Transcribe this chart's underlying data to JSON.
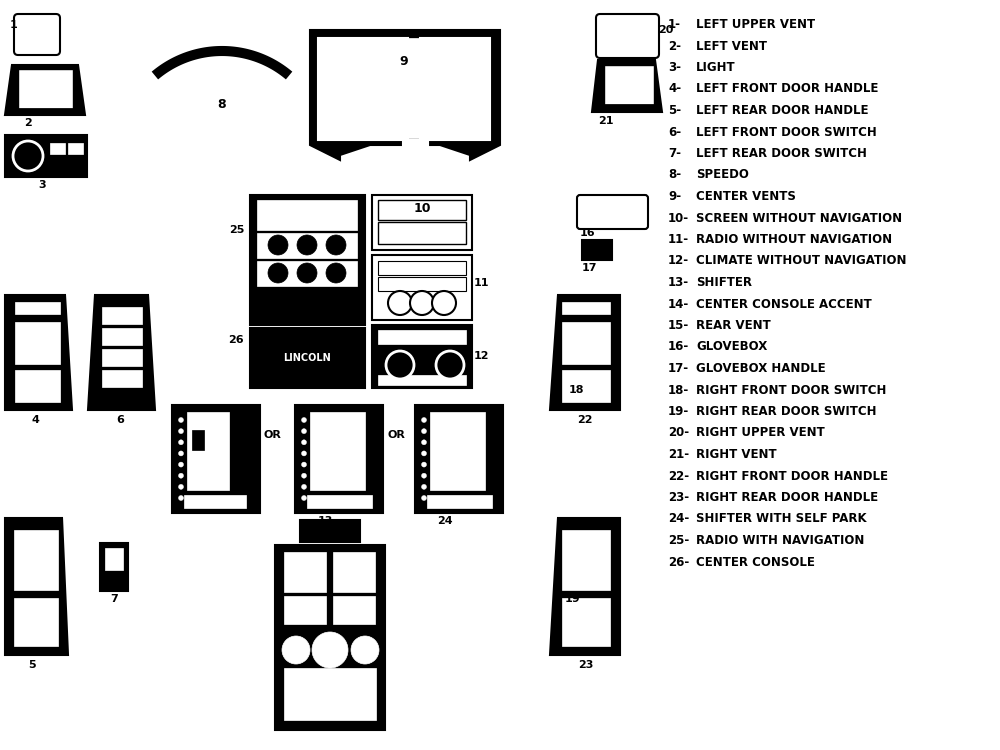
{
  "background": "#ffffff",
  "legend": [
    [
      "1-",
      "LEFT UPPER VENT"
    ],
    [
      "2-",
      "LEFT VENT"
    ],
    [
      "3-",
      "LIGHT"
    ],
    [
      "4-",
      "LEFT FRONT DOOR HANDLE"
    ],
    [
      "5-",
      "LEFT REAR DOOR HANDLE"
    ],
    [
      "6-",
      "LEFT FRONT DOOR SWITCH"
    ],
    [
      "7-",
      "LEFT REAR DOOR SWITCH"
    ],
    [
      "8-",
      "SPEEDO"
    ],
    [
      "9-",
      "CENTER VENTS"
    ],
    [
      "10-",
      "SCREEN WITHOUT NAVIGATION"
    ],
    [
      "11-",
      "RADIO WITHOUT NAVIGATION"
    ],
    [
      "12-",
      "CLIMATE WITHOUT NAVIGATION"
    ],
    [
      "13-",
      "SHIFTER"
    ],
    [
      "14-",
      "CENTER CONSOLE ACCENT"
    ],
    [
      "15-",
      "REAR VENT"
    ],
    [
      "16-",
      "GLOVEBOX"
    ],
    [
      "17-",
      "GLOVEBOX HANDLE"
    ],
    [
      "18-",
      "RIGHT FRONT DOOR SWITCH"
    ],
    [
      "19-",
      "RIGHT REAR DOOR SWITCH"
    ],
    [
      "20-",
      "RIGHT UPPER VENT"
    ],
    [
      "21-",
      "RIGHT VENT"
    ],
    [
      "22-",
      "RIGHT FRONT DOOR HANDLE"
    ],
    [
      "23-",
      "RIGHT REAR DOOR HANDLE"
    ],
    [
      "24-",
      "SHIFTER WITH SELF PARK"
    ],
    [
      "25-",
      "RADIO WITH NAVIGATION"
    ],
    [
      "26-",
      "CENTER CONSOLE"
    ]
  ],
  "lw": 1.5
}
